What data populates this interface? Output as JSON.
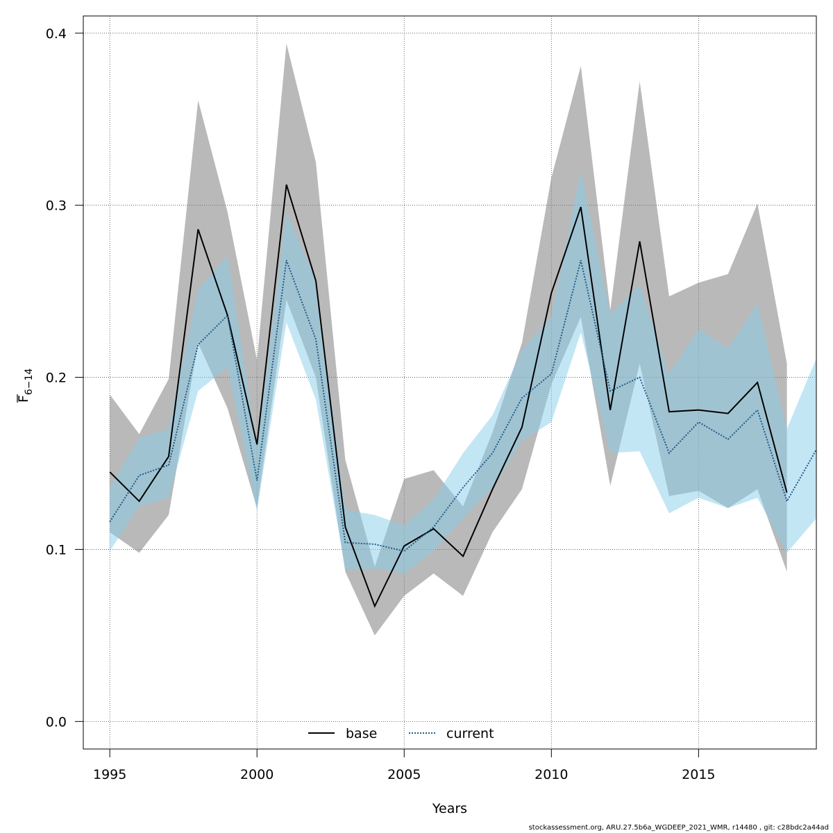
{
  "chart_data": {
    "type": "line",
    "title": "",
    "xlabel": "Years",
    "ylabel_main": "F",
    "ylabel_sub": "6−14",
    "xlim": [
      1994.1,
      2019
    ],
    "ylim": [
      -0.016,
      0.41
    ],
    "x_ticks": [
      1995,
      2000,
      2005,
      2010,
      2015
    ],
    "x_tick_labels": [
      "1995",
      "2000",
      "2005",
      "2010",
      "2015"
    ],
    "y_ticks": [
      0.0,
      0.1,
      0.2,
      0.3,
      0.4
    ],
    "y_tick_labels": [
      "0.0",
      "0.1",
      "0.2",
      "0.3",
      "0.4"
    ],
    "grid": true,
    "legend_position": "bottom-center",
    "series": [
      {
        "name": "base",
        "line_style": "solid",
        "color": "#000000",
        "band_color": "#808080",
        "x": [
          1995,
          1996,
          1997,
          1998,
          1999,
          2000,
          2001,
          2002,
          2003,
          2004,
          2005,
          2006,
          2007,
          2008,
          2009,
          2010,
          2011,
          2012,
          2013,
          2014,
          2015,
          2016,
          2017,
          2018
        ],
        "values": [
          0.145,
          0.128,
          0.154,
          0.286,
          0.236,
          0.161,
          0.312,
          0.256,
          0.113,
          0.067,
          0.102,
          0.112,
          0.096,
          0.135,
          0.171,
          0.249,
          0.299,
          0.181,
          0.279,
          0.18,
          0.181,
          0.179,
          0.197,
          0.133
        ],
        "lower": [
          0.11,
          0.098,
          0.12,
          0.22,
          0.182,
          0.124,
          0.245,
          0.2,
          0.087,
          0.05,
          0.073,
          0.086,
          0.073,
          0.11,
          0.135,
          0.196,
          0.235,
          0.137,
          0.208,
          0.131,
          0.134,
          0.124,
          0.135,
          0.087
        ],
        "upper": [
          0.19,
          0.167,
          0.199,
          0.361,
          0.296,
          0.21,
          0.394,
          0.325,
          0.152,
          0.09,
          0.141,
          0.146,
          0.125,
          0.168,
          0.22,
          0.316,
          0.381,
          0.239,
          0.372,
          0.247,
          0.255,
          0.26,
          0.301,
          0.208
        ]
      },
      {
        "name": "current",
        "line_style": "dotted",
        "color": "#1f5a85",
        "band_color": "#87CEEB",
        "x": [
          1995,
          1996,
          1997,
          1998,
          1999,
          2000,
          2001,
          2002,
          2003,
          2004,
          2005,
          2006,
          2007,
          2008,
          2009,
          2010,
          2011,
          2012,
          2013,
          2014,
          2015,
          2016,
          2017,
          2018,
          2019
        ],
        "values": [
          0.116,
          0.143,
          0.149,
          0.219,
          0.236,
          0.14,
          0.268,
          0.222,
          0.104,
          0.103,
          0.099,
          0.113,
          0.136,
          0.156,
          0.188,
          0.202,
          0.268,
          0.192,
          0.2,
          0.156,
          0.174,
          0.164,
          0.181,
          0.128,
          0.158
        ],
        "lower": [
          0.099,
          0.125,
          0.13,
          0.192,
          0.206,
          0.122,
          0.232,
          0.187,
          0.088,
          0.089,
          0.086,
          0.099,
          0.118,
          0.136,
          0.163,
          0.174,
          0.226,
          0.156,
          0.157,
          0.121,
          0.13,
          0.124,
          0.13,
          0.098,
          0.118
        ],
        "upper": [
          0.136,
          0.165,
          0.17,
          0.251,
          0.271,
          0.16,
          0.296,
          0.256,
          0.123,
          0.12,
          0.114,
          0.129,
          0.156,
          0.178,
          0.216,
          0.235,
          0.32,
          0.237,
          0.254,
          0.202,
          0.228,
          0.217,
          0.243,
          0.17,
          0.211
        ]
      }
    ]
  },
  "footer_text": "stockassessment.org, ARU.27.5b6a_WGDEEP_2021_WMR, r14480 , git: c28bdc2a44ad"
}
